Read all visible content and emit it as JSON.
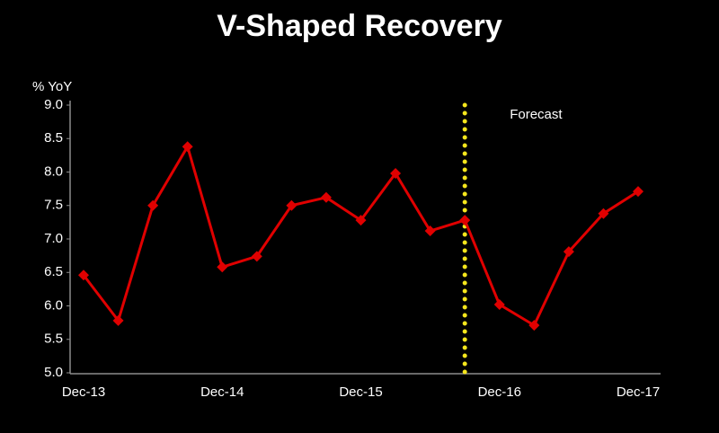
{
  "chart_data": {
    "type": "line",
    "title": "V-Shaped Recovery",
    "y_label": "% YoY",
    "categories": [
      "Dec-13",
      null,
      null,
      null,
      "Dec-14",
      null,
      null,
      null,
      "Dec-15",
      null,
      null,
      null,
      "Dec-16",
      null,
      null,
      null,
      "Dec-17"
    ],
    "series": [
      {
        "name": "% YoY",
        "color": "#e00000",
        "values": [
          6.46,
          5.78,
          7.5,
          8.38,
          6.58,
          6.74,
          7.5,
          7.62,
          7.28,
          7.98,
          7.12,
          7.28,
          6.02,
          5.71,
          6.81,
          7.38,
          7.71
        ]
      }
    ],
    "ylim": [
      5,
      9
    ],
    "yticks": [
      {
        "value": 5,
        "label": "5.0"
      },
      5.5,
      {
        "value": 6,
        "label": "6.0"
      },
      6.5,
      {
        "value": 7,
        "label": "7.0"
      },
      7.5,
      {
        "value": 8,
        "label": "8.0"
      },
      8.5,
      {
        "value": 9,
        "label": "9.0"
      }
    ],
    "grid": false,
    "forecast_line": {
      "label": "Forecast",
      "at": 11,
      "color": "#f5e61c"
    }
  }
}
